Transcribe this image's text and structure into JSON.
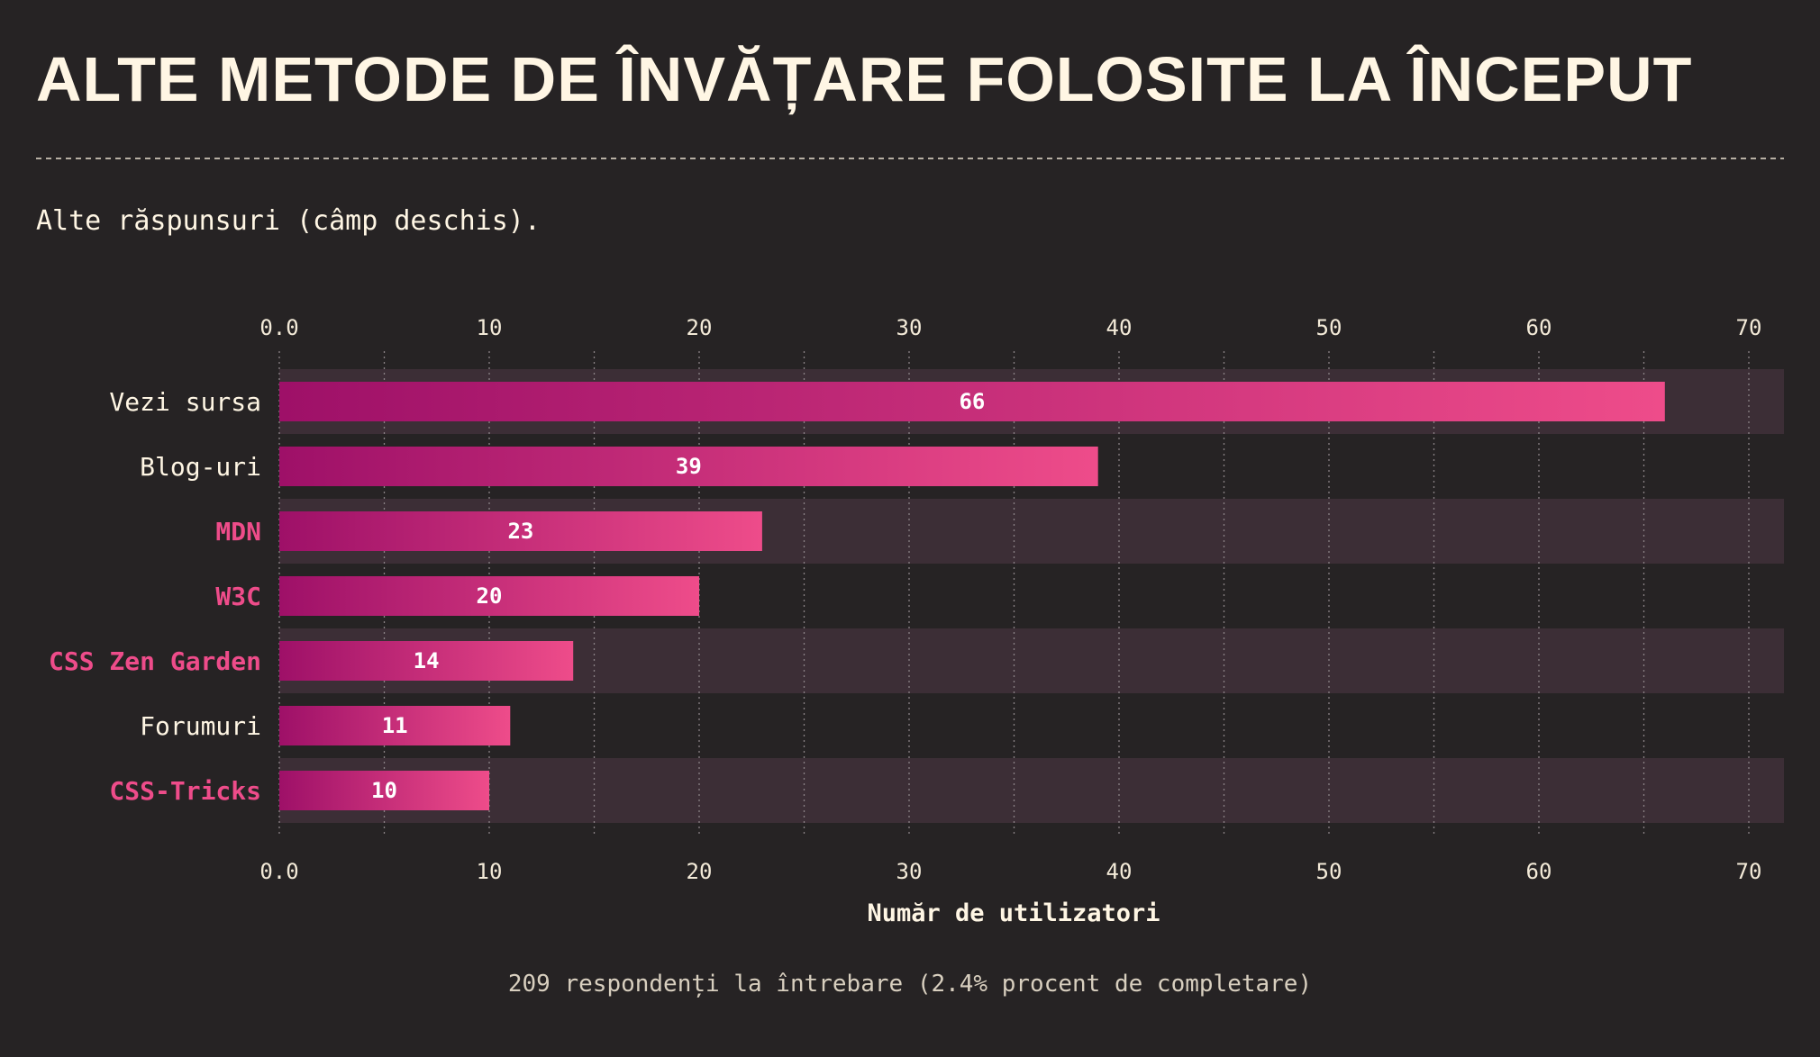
{
  "chart_data": {
    "type": "bar",
    "orientation": "horizontal",
    "title": "ALTE METODE DE ÎNVĂȚARE FOLOSITE LA ÎNCEPUT",
    "subtitle": "Alte răspunsuri (câmp deschis).",
    "xlabel": "Număr de utilizatori",
    "footnote": "209 respondenți la întrebare (2.4% procent de completare)",
    "xlim": [
      0,
      72
    ],
    "ticks": [
      {
        "value": 0,
        "label": "0.0"
      },
      {
        "value": 10,
        "label": "10"
      },
      {
        "value": 20,
        "label": "20"
      },
      {
        "value": 30,
        "label": "30"
      },
      {
        "value": 40,
        "label": "40"
      },
      {
        "value": 50,
        "label": "50"
      },
      {
        "value": 60,
        "label": "60"
      },
      {
        "value": 70,
        "label": "70"
      }
    ],
    "minor_gridlines": [
      5,
      15,
      25,
      35,
      45,
      55,
      65
    ],
    "grid": true,
    "categories": [
      "Vezi sursa",
      "Blog-uri",
      "MDN",
      "W3C",
      "CSS Zen Garden",
      "Forumuri",
      "CSS-Tricks"
    ],
    "values": [
      66,
      39,
      23,
      20,
      14,
      11,
      10
    ],
    "highlighted": [
      false,
      false,
      true,
      true,
      true,
      false,
      true
    ],
    "colors": {
      "background": "#262324",
      "band": "#3c2e36",
      "bar_start": "#9e1068",
      "bar_end": "#ee4c8a",
      "highlight_label": "#ee4c8a",
      "label": "#fff6e4",
      "text": "#fff6e4"
    }
  }
}
